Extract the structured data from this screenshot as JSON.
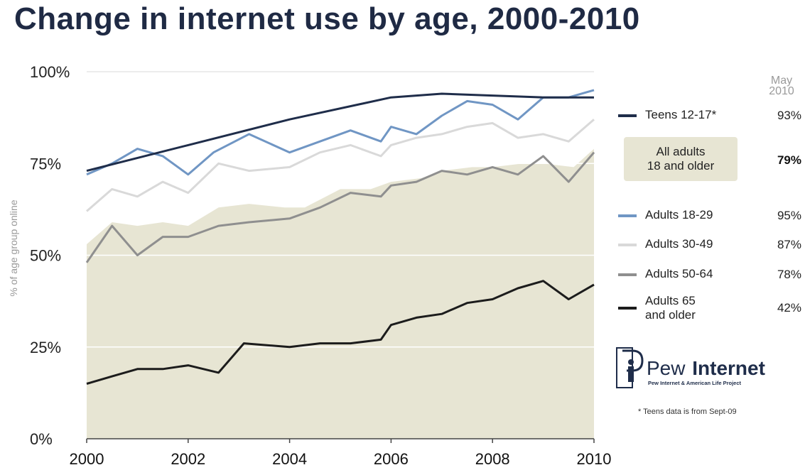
{
  "title": "Change in internet use by age, 2000-2010",
  "chart_data": {
    "type": "line",
    "title": "Change in internet use by age, 2000-2010",
    "ylabel": "% of age group online",
    "xlabel": "",
    "xlim": [
      2000,
      2010
    ],
    "ylim": [
      0,
      100
    ],
    "x_ticks": [
      "2000",
      "2002",
      "2004",
      "2006",
      "2008",
      "2010"
    ],
    "y_ticks": [
      "0%",
      "25%",
      "50%",
      "75%",
      "100%"
    ],
    "grid": "horizontal",
    "legend_placement": "right",
    "legend_column_header": "May 2010",
    "area": {
      "name": "All adults 18 and older",
      "label": "All adults\n18 and older",
      "color": "#e7e5d3",
      "latest": "79%",
      "x": [
        2000,
        2000.5,
        2001,
        2001.5,
        2002,
        2002.6,
        2003.2,
        2003.9,
        2004.3,
        2005,
        2005.6,
        2006,
        2006.6,
        2007,
        2007.6,
        2008,
        2008.6,
        2009,
        2009.6,
        2010
      ],
      "y": [
        53,
        59,
        58,
        59,
        58,
        63,
        64,
        63,
        63,
        68,
        68,
        70,
        71,
        73,
        74,
        74,
        75,
        75,
        74,
        79
      ]
    },
    "series": [
      {
        "name": "Teens 12-17*",
        "color": "#1f2d4a",
        "latest": "93%",
        "x": [
          2000,
          2002,
          2004,
          2006,
          2007,
          2008,
          2009,
          2010
        ],
        "y": [
          73,
          80,
          87,
          93,
          94,
          93.5,
          93,
          93
        ]
      },
      {
        "name": "Adults 18-29",
        "color": "#7096c4",
        "latest": "95%",
        "x": [
          2000,
          2000.5,
          2001,
          2001.5,
          2002,
          2002.5,
          2003.2,
          2004,
          2004.6,
          2005.2,
          2005.8,
          2006,
          2006.5,
          2007,
          2007.5,
          2008,
          2008.5,
          2009,
          2009.5,
          2010
        ],
        "y": [
          72,
          75,
          79,
          77,
          72,
          78,
          83,
          78,
          81,
          84,
          81,
          85,
          83,
          88,
          92,
          91,
          87,
          93,
          93,
          95
        ]
      },
      {
        "name": "Adults 30-49",
        "color": "#d9d9d9",
        "latest": "87%",
        "x": [
          2000,
          2000.5,
          2001,
          2001.5,
          2002,
          2002.6,
          2003.2,
          2004,
          2004.6,
          2005.2,
          2005.8,
          2006,
          2006.5,
          2007,
          2007.5,
          2008,
          2008.5,
          2009,
          2009.5,
          2010
        ],
        "y": [
          62,
          68,
          66,
          70,
          67,
          75,
          73,
          74,
          78,
          80,
          77,
          80,
          82,
          83,
          85,
          86,
          82,
          83,
          81,
          87
        ]
      },
      {
        "name": "Adults 50-64",
        "color": "#8f8f8f",
        "latest": "78%",
        "x": [
          2000,
          2000.5,
          2001,
          2001.5,
          2002,
          2002.6,
          2003.2,
          2004,
          2004.6,
          2005.2,
          2005.8,
          2006,
          2006.5,
          2007,
          2007.5,
          2008,
          2008.5,
          2009,
          2009.5,
          2010
        ],
        "y": [
          48,
          58,
          50,
          55,
          55,
          58,
          59,
          60,
          63,
          67,
          66,
          69,
          70,
          73,
          72,
          74,
          72,
          77,
          70,
          78
        ]
      },
      {
        "name": "Adults 65\nand older",
        "color": "#1c1c1c",
        "latest": "42%",
        "x": [
          2000,
          2000.5,
          2001,
          2001.5,
          2002,
          2002.6,
          2003.1,
          2004,
          2004.6,
          2005.2,
          2005.8,
          2006,
          2006.5,
          2007,
          2007.5,
          2008,
          2008.5,
          2009,
          2009.5,
          2010
        ],
        "y": [
          15,
          17,
          19,
          19,
          20,
          18,
          26,
          25,
          26,
          26,
          27,
          31,
          33,
          34,
          37,
          38,
          41,
          43,
          38,
          42
        ]
      }
    ]
  },
  "legend": {
    "header_line1": "May",
    "header_line2": "2010"
  },
  "logo": {
    "word1": "Pew",
    "word2": "Internet",
    "tagline": "Pew Internet & American Life Project"
  },
  "footnote": "* Teens data is from Sept-09"
}
